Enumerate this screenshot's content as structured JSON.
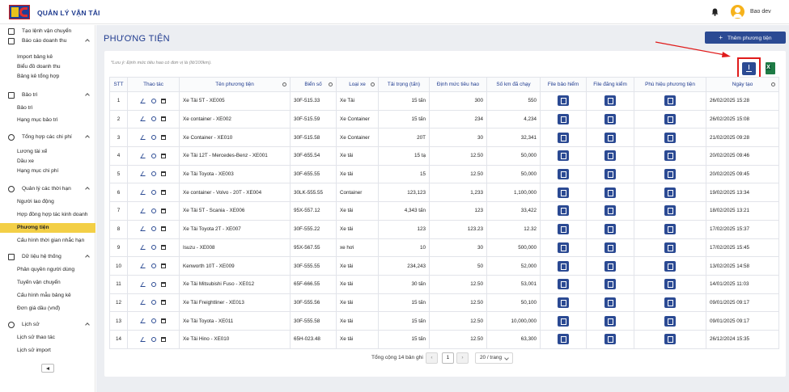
{
  "app": {
    "title": "QUẢN LÝ VẬN TẢI",
    "user": "Bao dev"
  },
  "sidebar": {
    "items": [
      {
        "label": "Tạo lệnh vận chuyển",
        "type": "section",
        "icon": "edit-icon"
      },
      {
        "label": "Báo cáo doanh thu",
        "type": "section",
        "icon": "report-icon"
      },
      {
        "label": "Import bảng kê",
        "type": "sub"
      },
      {
        "label": "Biểu đồ doanh thu",
        "type": "sub"
      },
      {
        "label": "Bảng kê tổng hợp",
        "type": "sub"
      },
      {
        "label": "Bảo trì",
        "type": "section",
        "icon": "wrench-icon"
      },
      {
        "label": "Bảo trì",
        "type": "sub"
      },
      {
        "label": "Hạng mục bảo trì",
        "type": "sub"
      },
      {
        "label": "Tổng hợp các chi phí",
        "type": "section",
        "icon": "dollar-icon"
      },
      {
        "label": "Lương tài xế",
        "type": "sub"
      },
      {
        "label": "Dầu xe",
        "type": "sub"
      },
      {
        "label": "Hạng mục chi phí",
        "type": "sub"
      },
      {
        "label": "Quản lý các thời hạn",
        "type": "section",
        "icon": "clock-icon"
      },
      {
        "label": "Người lao động",
        "type": "sub"
      },
      {
        "label": "Hợp đồng hợp tác kinh doanh",
        "type": "sub"
      },
      {
        "label": "Phương tiện",
        "type": "sub",
        "active": true
      },
      {
        "label": "Cấu hình thời gian nhắc hạn",
        "type": "sub"
      },
      {
        "label": "Dữ liệu hệ thống",
        "type": "section",
        "icon": "database-icon"
      },
      {
        "label": "Phân quyền người dùng",
        "type": "sub"
      },
      {
        "label": "Tuyến vận chuyển",
        "type": "sub"
      },
      {
        "label": "Cấu hình mẫu bảng kê",
        "type": "sub"
      },
      {
        "label": "Đơn giá dầu (vnđ)",
        "type": "sub"
      },
      {
        "label": "Lịch sử",
        "type": "section",
        "icon": "history-icon"
      },
      {
        "label": "Lịch sử thao tác",
        "type": "sub"
      },
      {
        "label": "Lịch sử import",
        "type": "sub"
      }
    ]
  },
  "main": {
    "title": "PHƯƠNG TIỆN",
    "add_button": "Thêm phương tiện",
    "note": "*Lưu ý: Định mức tiêu hao có đơn vị là (lít/100km).",
    "columns": [
      "STT",
      "Thao tác",
      "Tên phương tiện",
      "Biển số",
      "Loại xe",
      "Tải trọng (tấn)",
      "Định mức tiêu hao",
      "Số km đã chạy",
      "File bảo hiểm",
      "File đăng kiểm",
      "Phù hiệu phương tiện",
      "Ngày tạo"
    ],
    "rows": [
      {
        "stt": "1",
        "name": "Xe Tải 5T - XE005",
        "plate": "30F-515.33",
        "type": "Xe Tải",
        "load": "15 tấn",
        "norm": "300",
        "km": "550",
        "date": "26/02/2025 15:28"
      },
      {
        "stt": "2",
        "name": "Xe container - XE002",
        "plate": "30F-515.59",
        "type": "Xe Container",
        "load": "15 tấn",
        "norm": "234",
        "km": "4,234",
        "date": "26/02/2025 15:08"
      },
      {
        "stt": "3",
        "name": "Xe Container - XE010",
        "plate": "30F-515.58",
        "type": "Xe Container",
        "load": "20T",
        "norm": "30",
        "km": "32,341",
        "date": "21/02/2025 09:28"
      },
      {
        "stt": "4",
        "name": "Xe Tải 12T - Mercedes-Benz - XE001",
        "plate": "30F-655.54",
        "type": "Xe tải",
        "load": "15 tạ",
        "norm": "12.50",
        "km": "50,000",
        "date": "20/02/2025 09:46"
      },
      {
        "stt": "5",
        "name": "Xe Tải Toyota - XE003",
        "plate": "30F-655.55",
        "type": "Xe tải",
        "load": "15",
        "norm": "12.50",
        "km": "50,000",
        "date": "20/02/2025 09:45"
      },
      {
        "stt": "6",
        "name": "Xe container - Volvo - 20T - XE004",
        "plate": "30LK-555.55",
        "type": "Container",
        "load": "123,123",
        "norm": "1,233",
        "km": "1,100,000",
        "date": "19/02/2025 13:34"
      },
      {
        "stt": "7",
        "name": "Xe Tải 5T - Scania - XE006",
        "plate": "95X-557.12",
        "type": "Xe tải",
        "load": "4,343 tấn",
        "norm": "123",
        "km": "33,422",
        "date": "18/02/2025 13:21"
      },
      {
        "stt": "8",
        "name": "Xe Tải Toyota 2T - XE007",
        "plate": "30F-555.22",
        "type": "Xe tải",
        "load": "123",
        "norm": "123.23",
        "km": "12.32",
        "date": "17/02/2025 15:37"
      },
      {
        "stt": "9",
        "name": "Isuzu - XE008",
        "plate": "95X-567.55",
        "type": "xe hơi",
        "load": "10",
        "norm": "30",
        "km": "500,000",
        "date": "17/02/2025 15:45"
      },
      {
        "stt": "10",
        "name": "Kenworth 10T - XE009",
        "plate": "30F-555.55",
        "type": "Xe tải",
        "load": "234,243",
        "norm": "50",
        "km": "52,000",
        "date": "13/02/2025 14:58"
      },
      {
        "stt": "11",
        "name": "Xe Tải Mitsubishi Fuso - XE012",
        "plate": "65F-666.55",
        "type": "Xe tải",
        "load": "30 tấn",
        "norm": "12.50",
        "km": "53,001",
        "date": "14/01/2025 11:03"
      },
      {
        "stt": "12",
        "name": "Xe Tải Freightliner - XE013",
        "plate": "30F-555.56",
        "type": "Xe tải",
        "load": "15 tấn",
        "norm": "12.50",
        "km": "50,100",
        "date": "09/01/2025 09:17"
      },
      {
        "stt": "13",
        "name": "Xe Tải Toyota - XE011",
        "plate": "30F-555.58",
        "type": "Xe tải",
        "load": "15 tấn",
        "norm": "12.50",
        "km": "10,000,000",
        "date": "09/01/2025 09:17"
      },
      {
        "stt": "14",
        "name": "Xe Tải Hino - XE010",
        "plate": "65H-023.48",
        "type": "Xe tải",
        "load": "15 tấn",
        "norm": "12.50",
        "km": "63,300",
        "date": "26/12/2024 15:35"
      }
    ],
    "pagination": {
      "total": "Tổng cộng 14 bản ghi",
      "current": "1",
      "page_size": "20 / trang"
    }
  },
  "colors": {
    "brand": "#1f3b8f",
    "button": "#2b4a93",
    "active": "#f3cf46",
    "highlight": "#e01b1b"
  }
}
